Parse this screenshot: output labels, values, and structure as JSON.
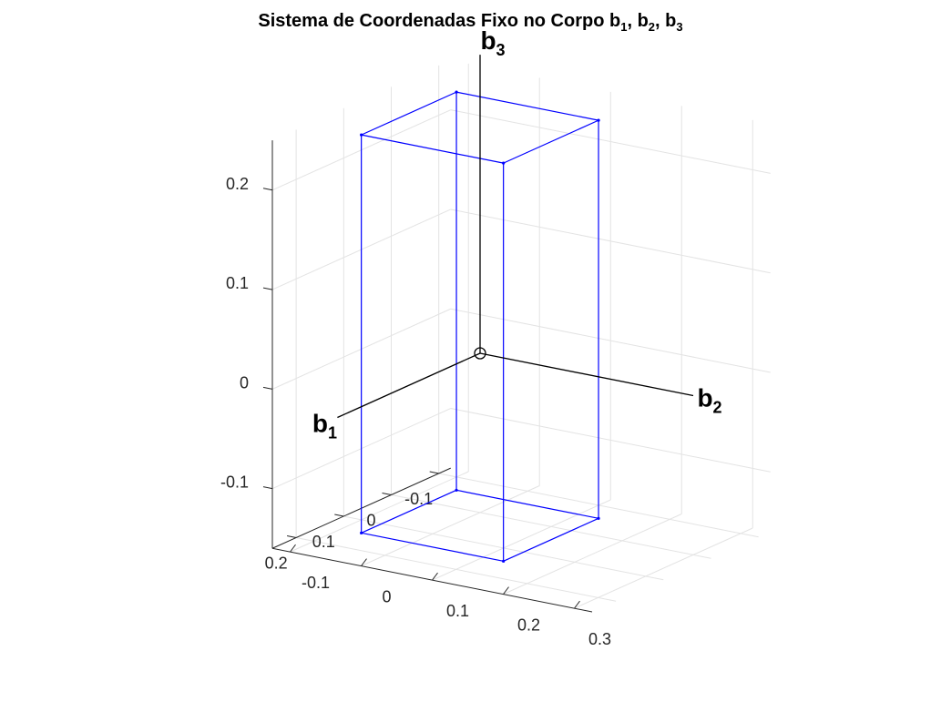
{
  "title": {
    "prefix": "Sistema de Coordenadas Fixo no Corpo b",
    "s1": "1",
    "sep1": ", b",
    "s2": "2",
    "sep2": ", b",
    "s3": "3"
  },
  "chart_data": {
    "type": "3d-wireframe",
    "title": "Sistema de Coordenadas Fixo no Corpo b1, b2, b3",
    "axes": {
      "x": {
        "ticks": [
          -0.1,
          0,
          0.1,
          0.2
        ],
        "tick_labels": [
          "-0.1",
          "0",
          "0.1",
          "0.2"
        ]
      },
      "y": {
        "ticks": [
          -0.1,
          0,
          0.1,
          0.2,
          0.3
        ],
        "tick_labels": [
          "-0.1",
          "0",
          "0.1",
          "0.2",
          "0.3"
        ]
      },
      "z": {
        "ticks": [
          -0.1,
          0,
          0.1,
          0.2
        ],
        "tick_labels": [
          "-0.1",
          "0",
          "0.1",
          "0.2"
        ]
      }
    },
    "grid": true,
    "box": {
      "color": "#0000ff",
      "x_range": [
        -0.025,
        0.175
      ],
      "y_range": [
        -0.05,
        0.15
      ],
      "z_range": [
        -0.15,
        0.25
      ]
    },
    "body_axes": [
      {
        "label": "b",
        "sub": "1",
        "from": [
          0,
          0,
          0
        ],
        "to": [
          0.3,
          0,
          0
        ]
      },
      {
        "label": "b",
        "sub": "2",
        "from": [
          0,
          0,
          0
        ],
        "to": [
          0,
          0.3,
          0
        ]
      },
      {
        "label": "b",
        "sub": "3",
        "from": [
          0,
          0,
          0
        ],
        "to": [
          0,
          0,
          0.3
        ]
      }
    ],
    "origin_marker": "circle",
    "axis_color": "#000000"
  }
}
